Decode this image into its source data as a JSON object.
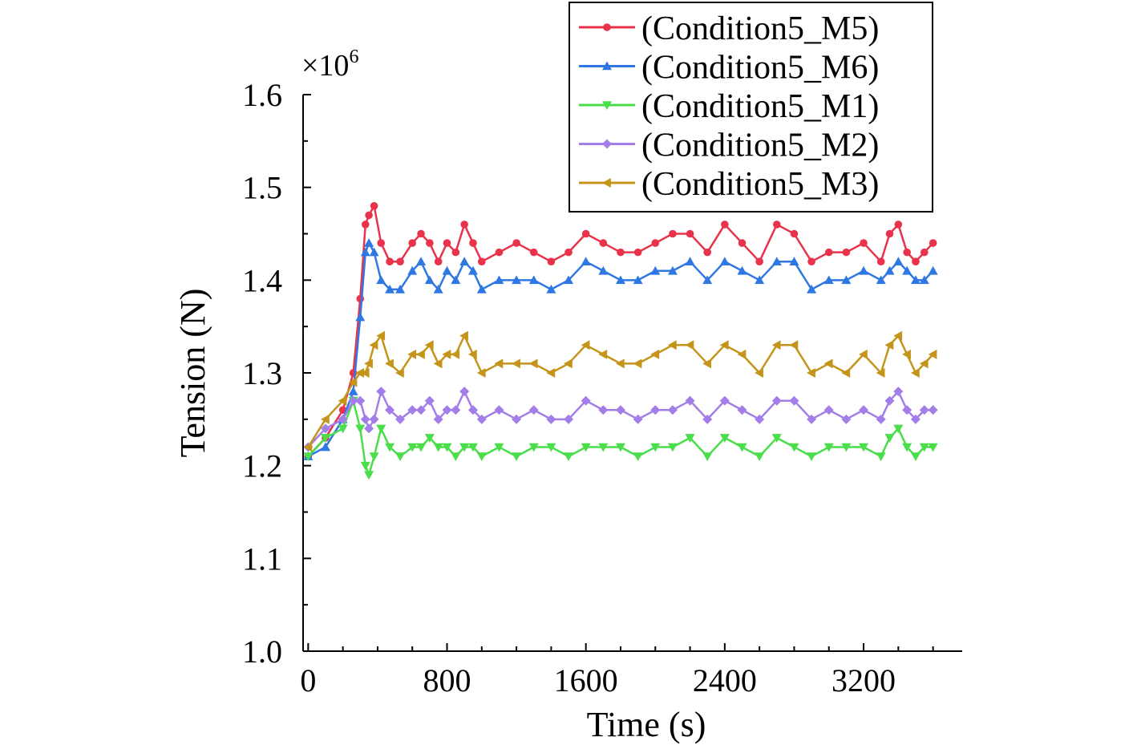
{
  "chart_data": {
    "type": "line",
    "title": "",
    "xlabel": "Time (s)",
    "ylabel": "Tension (N)",
    "y_multiplier_label": "×10",
    "y_multiplier_exponent": "6",
    "xlim": [
      -20,
      3780
    ],
    "ylim": [
      1.0,
      1.6
    ],
    "x_ticks": [
      0,
      800,
      1600,
      2400,
      3200
    ],
    "x_tick_labels": [
      "0",
      "800",
      "1600",
      "2400",
      "3200"
    ],
    "y_ticks": [
      1.0,
      1.1,
      1.2,
      1.3,
      1.4,
      1.5,
      1.6
    ],
    "y_tick_labels": [
      "1.0",
      "1.1",
      "1.2",
      "1.3",
      "1.4",
      "1.5",
      "1.6"
    ],
    "grid": false,
    "legend_position": "top-right",
    "series": [
      {
        "name": "(Condition5_M5)",
        "color": "#e8334a",
        "marker": "circle",
        "x": [
          0,
          100,
          200,
          260,
          300,
          330,
          350,
          380,
          420,
          470,
          530,
          600,
          650,
          700,
          750,
          800,
          850,
          900,
          950,
          1000,
          1100,
          1200,
          1300,
          1400,
          1500,
          1600,
          1700,
          1800,
          1900,
          2000,
          2100,
          2200,
          2300,
          2400,
          2500,
          2600,
          2700,
          2800,
          2900,
          3000,
          3100,
          3200,
          3300,
          3350,
          3400,
          3450,
          3500,
          3550,
          3600
        ],
        "values": [
          1.21,
          1.23,
          1.26,
          1.3,
          1.38,
          1.46,
          1.47,
          1.48,
          1.44,
          1.42,
          1.42,
          1.44,
          1.45,
          1.44,
          1.42,
          1.44,
          1.43,
          1.46,
          1.44,
          1.42,
          1.43,
          1.44,
          1.43,
          1.42,
          1.43,
          1.45,
          1.44,
          1.43,
          1.43,
          1.44,
          1.45,
          1.45,
          1.43,
          1.46,
          1.44,
          1.42,
          1.46,
          1.45,
          1.42,
          1.43,
          1.43,
          1.44,
          1.42,
          1.45,
          1.46,
          1.43,
          1.42,
          1.43,
          1.44
        ]
      },
      {
        "name": "(Condition5_M6)",
        "color": "#2f78e4",
        "marker": "triangle-up",
        "x": [
          0,
          100,
          200,
          260,
          300,
          330,
          350,
          380,
          420,
          470,
          530,
          600,
          650,
          700,
          750,
          800,
          850,
          900,
          950,
          1000,
          1100,
          1200,
          1300,
          1400,
          1500,
          1600,
          1700,
          1800,
          1900,
          2000,
          2100,
          2200,
          2300,
          2400,
          2500,
          2600,
          2700,
          2800,
          2900,
          3000,
          3100,
          3200,
          3300,
          3350,
          3400,
          3450,
          3500,
          3550,
          3600
        ],
        "values": [
          1.21,
          1.22,
          1.25,
          1.28,
          1.36,
          1.43,
          1.44,
          1.43,
          1.4,
          1.39,
          1.39,
          1.41,
          1.42,
          1.4,
          1.39,
          1.41,
          1.4,
          1.42,
          1.41,
          1.39,
          1.4,
          1.4,
          1.4,
          1.39,
          1.4,
          1.42,
          1.41,
          1.4,
          1.4,
          1.41,
          1.41,
          1.42,
          1.4,
          1.42,
          1.41,
          1.4,
          1.42,
          1.42,
          1.39,
          1.4,
          1.4,
          1.41,
          1.4,
          1.41,
          1.42,
          1.41,
          1.4,
          1.4,
          1.41
        ]
      },
      {
        "name": "(Condition5_M1)",
        "color": "#4ade4a",
        "marker": "triangle-down",
        "x": [
          0,
          100,
          200,
          260,
          300,
          330,
          350,
          380,
          420,
          470,
          530,
          600,
          650,
          700,
          750,
          800,
          850,
          900,
          950,
          1000,
          1100,
          1200,
          1300,
          1400,
          1500,
          1600,
          1700,
          1800,
          1900,
          2000,
          2100,
          2200,
          2300,
          2400,
          2500,
          2600,
          2700,
          2800,
          2900,
          3000,
          3100,
          3200,
          3300,
          3350,
          3400,
          3450,
          3500,
          3550,
          3600
        ],
        "values": [
          1.21,
          1.23,
          1.24,
          1.27,
          1.24,
          1.2,
          1.19,
          1.21,
          1.24,
          1.22,
          1.21,
          1.22,
          1.22,
          1.23,
          1.22,
          1.22,
          1.21,
          1.22,
          1.22,
          1.21,
          1.22,
          1.21,
          1.22,
          1.22,
          1.21,
          1.22,
          1.22,
          1.22,
          1.21,
          1.22,
          1.22,
          1.23,
          1.21,
          1.23,
          1.22,
          1.21,
          1.23,
          1.22,
          1.21,
          1.22,
          1.22,
          1.22,
          1.21,
          1.23,
          1.24,
          1.22,
          1.21,
          1.22,
          1.22
        ]
      },
      {
        "name": "(Condition5_M2)",
        "color": "#a47ee8",
        "marker": "diamond",
        "x": [
          0,
          100,
          200,
          260,
          300,
          330,
          350,
          380,
          420,
          470,
          530,
          600,
          650,
          700,
          750,
          800,
          850,
          900,
          950,
          1000,
          1100,
          1200,
          1300,
          1400,
          1500,
          1600,
          1700,
          1800,
          1900,
          2000,
          2100,
          2200,
          2300,
          2400,
          2500,
          2600,
          2700,
          2800,
          2900,
          3000,
          3100,
          3200,
          3300,
          3350,
          3400,
          3450,
          3500,
          3550,
          3600
        ],
        "values": [
          1.22,
          1.24,
          1.25,
          1.27,
          1.27,
          1.25,
          1.24,
          1.25,
          1.28,
          1.26,
          1.25,
          1.26,
          1.26,
          1.27,
          1.25,
          1.26,
          1.26,
          1.28,
          1.26,
          1.25,
          1.26,
          1.25,
          1.26,
          1.25,
          1.25,
          1.27,
          1.26,
          1.26,
          1.25,
          1.26,
          1.26,
          1.27,
          1.25,
          1.27,
          1.26,
          1.25,
          1.27,
          1.27,
          1.25,
          1.26,
          1.25,
          1.26,
          1.25,
          1.27,
          1.28,
          1.26,
          1.25,
          1.26,
          1.26
        ]
      },
      {
        "name": "(Condition5_M3)",
        "color": "#c4951a",
        "marker": "triangle-left",
        "x": [
          0,
          100,
          200,
          260,
          300,
          330,
          350,
          380,
          420,
          470,
          530,
          600,
          650,
          700,
          750,
          800,
          850,
          900,
          950,
          1000,
          1100,
          1200,
          1300,
          1400,
          1500,
          1600,
          1700,
          1800,
          1900,
          2000,
          2100,
          2200,
          2300,
          2400,
          2500,
          2600,
          2700,
          2800,
          2900,
          3000,
          3100,
          3200,
          3300,
          3350,
          3400,
          3450,
          3500,
          3550,
          3600
        ],
        "values": [
          1.22,
          1.25,
          1.27,
          1.29,
          1.3,
          1.3,
          1.31,
          1.33,
          1.34,
          1.31,
          1.3,
          1.32,
          1.32,
          1.33,
          1.31,
          1.32,
          1.32,
          1.34,
          1.32,
          1.3,
          1.31,
          1.31,
          1.31,
          1.3,
          1.31,
          1.33,
          1.32,
          1.31,
          1.31,
          1.32,
          1.33,
          1.33,
          1.31,
          1.33,
          1.32,
          1.3,
          1.33,
          1.33,
          1.3,
          1.31,
          1.3,
          1.32,
          1.3,
          1.33,
          1.34,
          1.32,
          1.3,
          1.31,
          1.32
        ]
      }
    ]
  }
}
